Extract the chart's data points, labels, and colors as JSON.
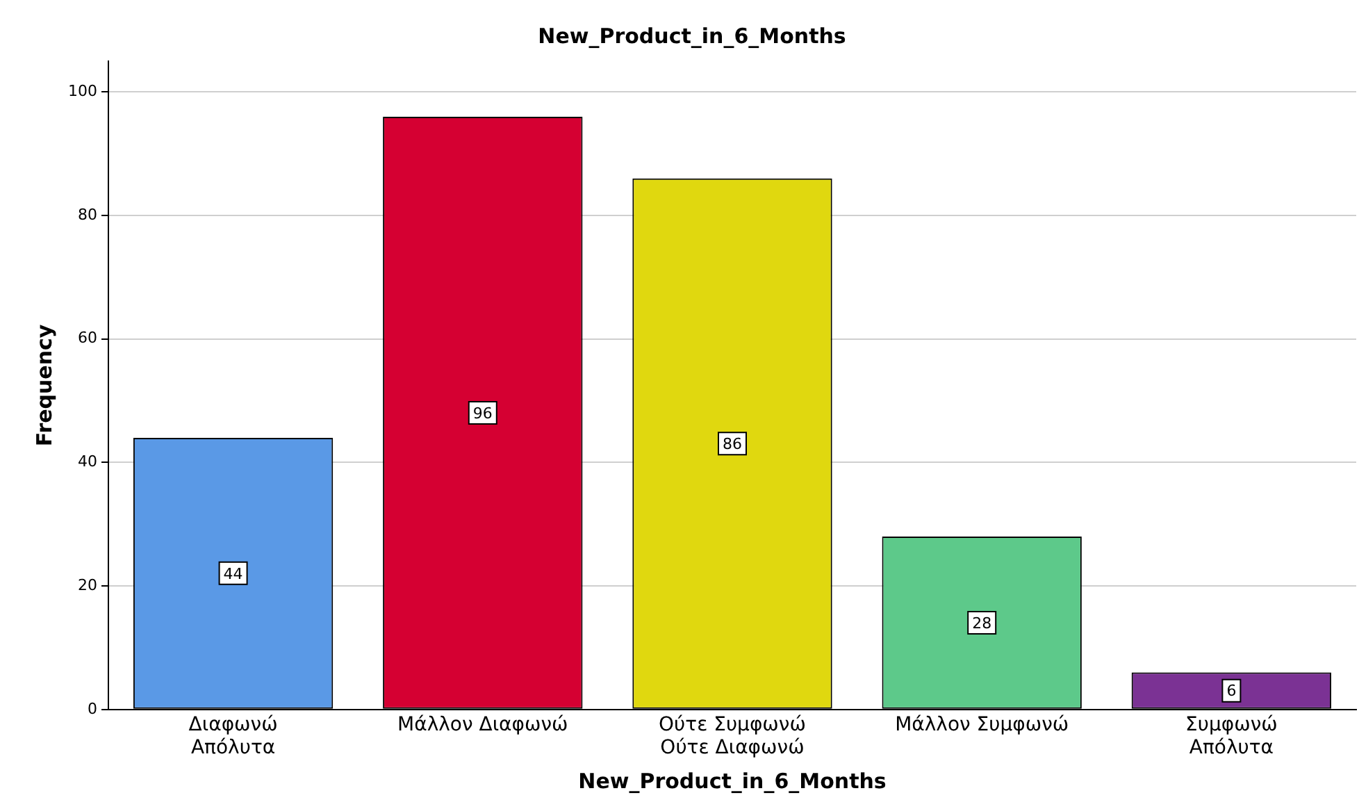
{
  "chart_data": {
    "type": "bar",
    "title": "New_Product_in_6_Months",
    "xlabel": "New_Product_in_6_Months",
    "ylabel": "Frequency",
    "categories": [
      "Διαφωνώ\nΑπόλυτα",
      "Μάλλον Διαφωνώ",
      "Ούτε Συμφωνώ\nΟύτε Διαφωνώ",
      "Μάλλον Συμφωνώ",
      "Συμφωνώ\nΑπόλυτα"
    ],
    "values": [
      44,
      96,
      86,
      28,
      6
    ],
    "colors": [
      "#5a99e6",
      "#d50032",
      "#e0d80f",
      "#5dc98a",
      "#7b3294"
    ],
    "ylim": [
      0,
      105
    ],
    "yticks": [
      0,
      20,
      40,
      60,
      80,
      100
    ],
    "grid": "y",
    "legend": false,
    "data_labels": true
  }
}
